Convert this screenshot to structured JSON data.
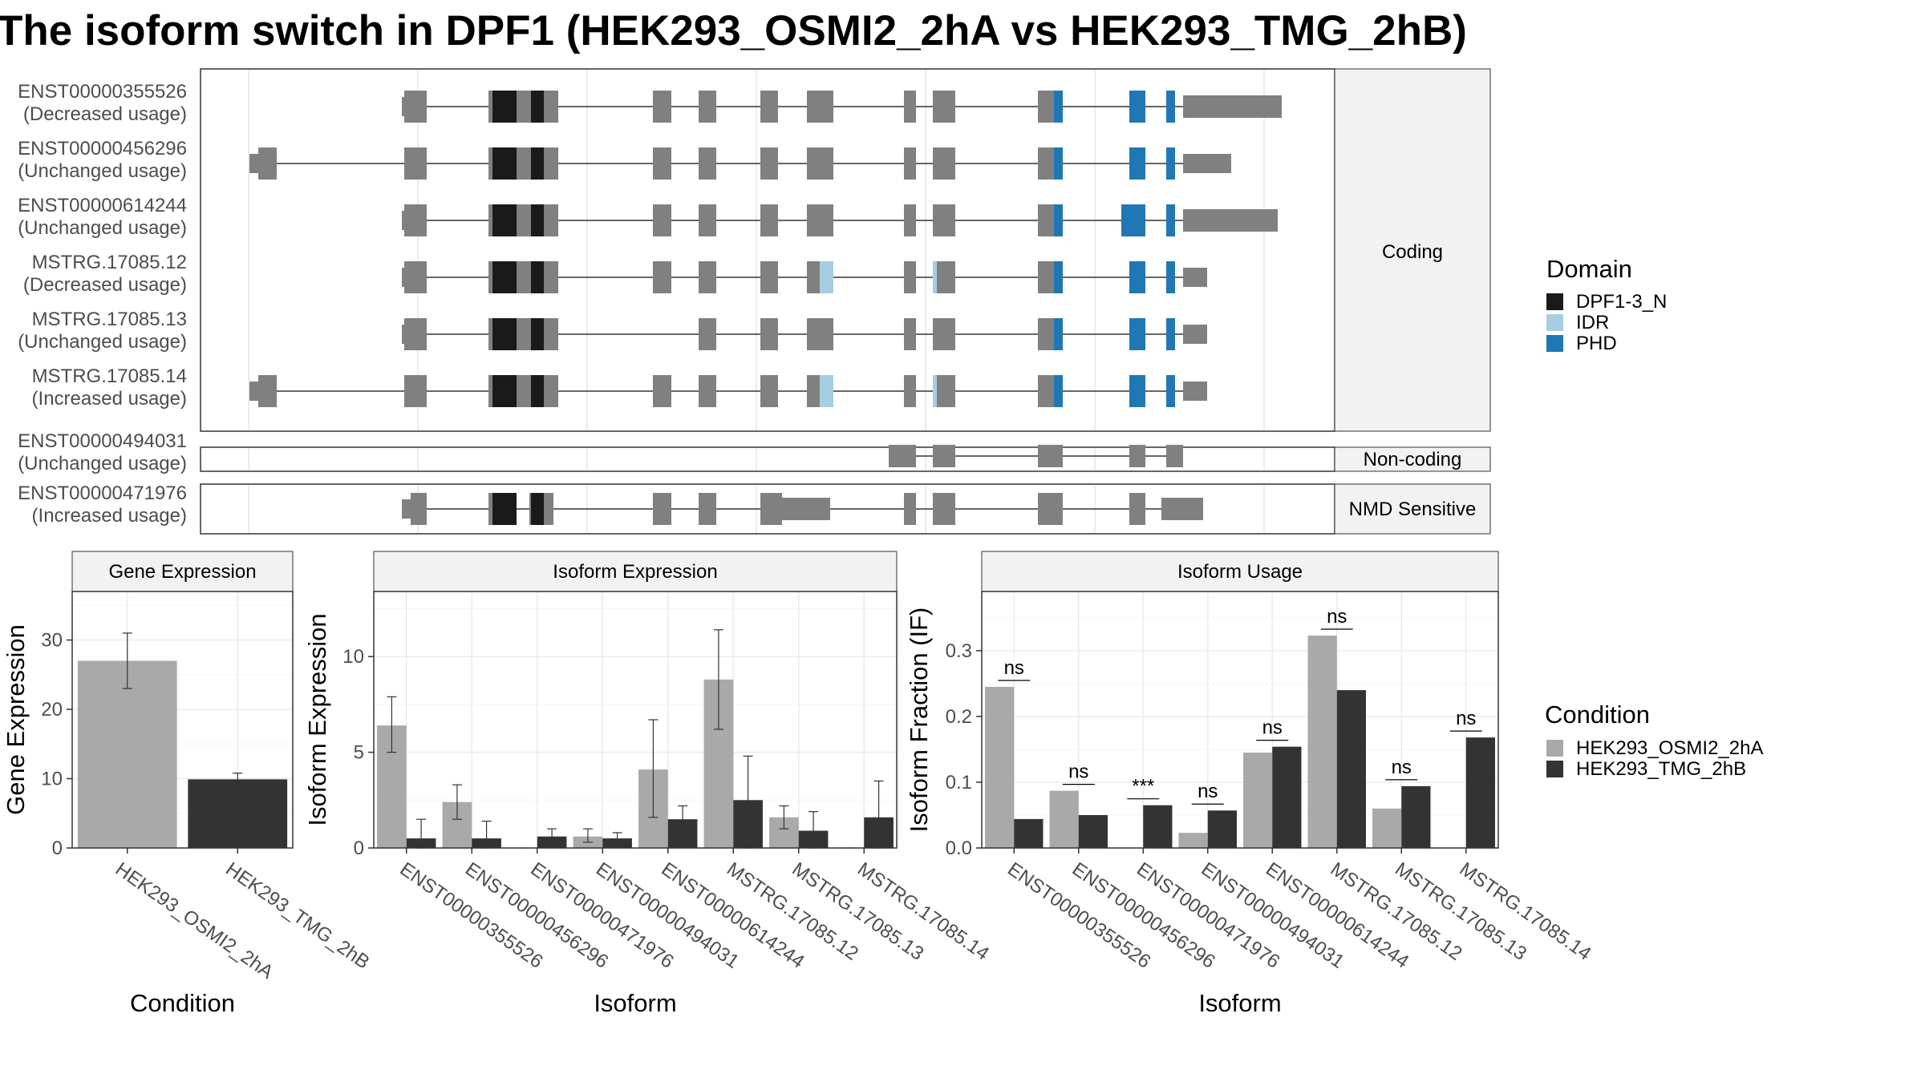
{
  "title": "The isoform switch in DPF1 (HEK293_OSMI2_2hA vs HEK293_TMG_2hB)",
  "colors": {
    "exon": "#808080",
    "strip_bg": "#f2f2f2",
    "DPF1-3_N": "#1a1a1a",
    "IDR": "#a6cee3",
    "PHD": "#1f78b4",
    "cond1": "#a9a9a9",
    "cond2": "#333333"
  },
  "structure": {
    "transcripts": [
      {
        "id": "ENST00000355526",
        "usage": "(Decreased usage)",
        "group": "Coding"
      },
      {
        "id": "ENST00000456296",
        "usage": "(Unchanged usage)",
        "group": "Coding"
      },
      {
        "id": "ENST00000614244",
        "usage": "(Unchanged usage)",
        "group": "Coding"
      },
      {
        "id": "MSTRG.17085.12",
        "usage": "(Decreased usage)",
        "group": "Coding"
      },
      {
        "id": "MSTRG.17085.13",
        "usage": "(Unchanged usage)",
        "group": "Coding"
      },
      {
        "id": "MSTRG.17085.14",
        "usage": "(Increased usage)",
        "group": "Coding"
      },
      {
        "id": "ENST00000494031",
        "usage": "(Unchanged usage)",
        "group": "Non-coding"
      },
      {
        "id": "ENST00000471976",
        "usage": "(Increased usage)",
        "group": "NMD Sensitive"
      }
    ],
    "groups": [
      "Coding",
      "Non-coding",
      "NMD Sensitive"
    ],
    "legend": {
      "title": "Domain",
      "items": [
        {
          "label": "DPF1-3_N",
          "color": "#1a1a1a"
        },
        {
          "label": "IDR",
          "color": "#a6cee3"
        },
        {
          "label": "PHD",
          "color": "#1f78b4"
        }
      ]
    }
  },
  "chart_data": [
    {
      "type": "bar",
      "title": "Gene Expression",
      "xlabel": "Condition",
      "ylabel": "Gene Expression",
      "ylim": [
        0,
        37
      ],
      "yticks": [
        0,
        10,
        20,
        30
      ],
      "categories": [
        "HEK293_OSMI2_2hA",
        "HEK293_TMG_2hB"
      ],
      "values": [
        27.0,
        9.9
      ],
      "error": [
        [
          23.0,
          31.0
        ],
        [
          9.0,
          10.8
        ]
      ]
    },
    {
      "type": "bar",
      "title": "Isoform Expression",
      "xlabel": "Isoform",
      "ylabel": "Isoform Expression",
      "ylim": [
        0,
        13.4
      ],
      "yticks": [
        0,
        5,
        10
      ],
      "categories": [
        "ENST00000355526",
        "ENST00000456296",
        "ENST00000471976",
        "ENST00000494031",
        "ENST00000614244",
        "MSTRG.17085.12",
        "MSTRG.17085.13",
        "MSTRG.17085.14"
      ],
      "series": [
        {
          "name": "HEK293_OSMI2_2hA",
          "values": [
            6.4,
            2.4,
            0.0,
            0.6,
            4.1,
            8.8,
            1.6,
            0.0
          ],
          "error": [
            [
              5.0,
              7.9
            ],
            [
              1.5,
              3.3
            ],
            [
              0.0,
              0.0
            ],
            [
              0.3,
              1.0
            ],
            [
              1.6,
              6.7
            ],
            [
              6.2,
              11.4
            ],
            [
              1.0,
              2.2
            ],
            [
              0.0,
              0.0
            ]
          ]
        },
        {
          "name": "HEK293_TMG_2hB",
          "values": [
            0.5,
            0.5,
            0.6,
            0.5,
            1.5,
            2.5,
            0.9,
            1.6
          ],
          "error": [
            [
              0.0,
              1.5
            ],
            [
              0.0,
              1.4
            ],
            [
              0.3,
              1.0
            ],
            [
              0.3,
              0.8
            ],
            [
              0.7,
              2.2
            ],
            [
              0.0,
              4.8
            ],
            [
              0.0,
              1.9
            ],
            [
              0.0,
              3.5
            ]
          ]
        }
      ]
    },
    {
      "type": "bar",
      "title": "Isoform Usage",
      "xlabel": "Isoform",
      "ylabel": "Isoform Fraction (IF)",
      "ylim": [
        0,
        0.39
      ],
      "yticks": [
        "0.0",
        "0.1",
        "0.2",
        "0.3"
      ],
      "categories": [
        "ENST00000355526",
        "ENST00000456296",
        "ENST00000471976",
        "ENST00000494031",
        "ENST00000614244",
        "MSTRG.17085.12",
        "MSTRG.17085.13",
        "MSTRG.17085.14"
      ],
      "series": [
        {
          "name": "HEK293_OSMI2_2hA",
          "values": [
            0.245,
            0.087,
            0.0,
            0.023,
            0.145,
            0.323,
            0.06,
            0.0
          ]
        },
        {
          "name": "HEK293_TMG_2hB",
          "values": [
            0.044,
            0.05,
            0.065,
            0.057,
            0.154,
            0.24,
            0.094,
            0.168
          ]
        }
      ],
      "significance": [
        "ns",
        "ns",
        "***",
        "ns",
        "ns",
        "ns",
        "ns",
        "ns"
      ]
    }
  ],
  "condition_legend": {
    "title": "Condition",
    "items": [
      {
        "label": "HEK293_OSMI2_2hA",
        "color": "#a9a9a9"
      },
      {
        "label": "HEK293_TMG_2hB",
        "color": "#333333"
      }
    ]
  }
}
